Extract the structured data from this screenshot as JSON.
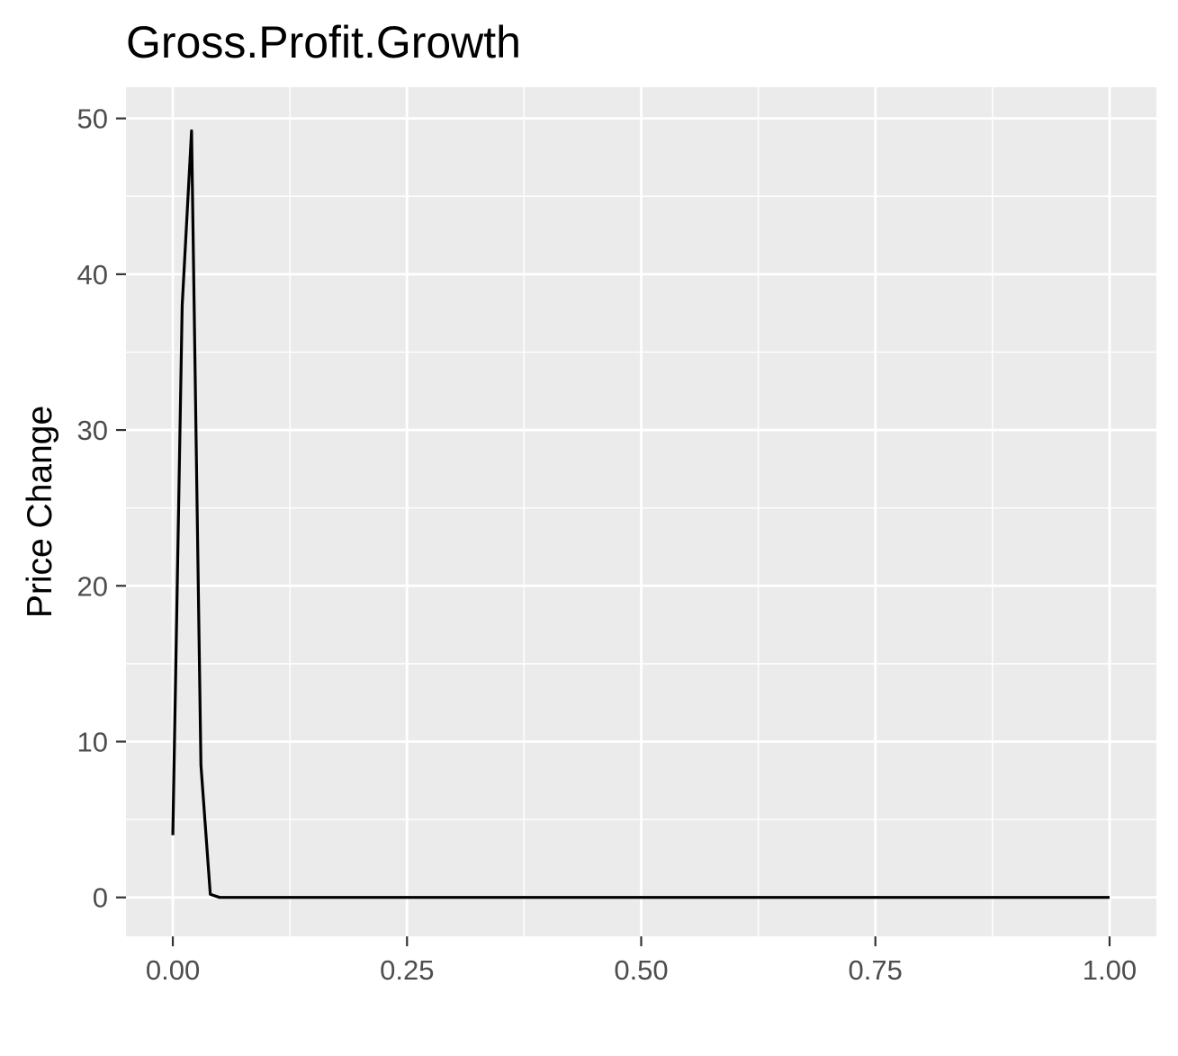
{
  "chart_data": {
    "type": "line",
    "title": "Gross.Profit.Growth",
    "xlabel": "",
    "ylabel": "Price Change",
    "xlim": [
      -0.05,
      1.05
    ],
    "ylim": [
      -2.5,
      52
    ],
    "x_ticks": [
      0.0,
      0.25,
      0.5,
      0.75,
      1.0
    ],
    "x_tick_labels": [
      "0.00",
      "0.25",
      "0.50",
      "0.75",
      "1.00"
    ],
    "y_ticks": [
      0,
      10,
      20,
      30,
      40,
      50
    ],
    "y_tick_labels": [
      "0",
      "10",
      "20",
      "30",
      "40",
      "50"
    ],
    "grid": true,
    "series": [
      {
        "x": [
          0.0,
          0.01,
          0.02,
          0.03,
          0.04,
          0.05,
          0.1,
          0.25,
          0.5,
          0.75,
          1.0
        ],
        "y": [
          4.0,
          38.0,
          49.2,
          8.5,
          0.2,
          0.0,
          0.0,
          0.0,
          0.0,
          0.0,
          0.0
        ]
      }
    ],
    "colors": {
      "panel_background": "#ebebeb",
      "grid_major": "#ffffff",
      "grid_minor": "#ffffff",
      "line": "#000000",
      "tick_mark": "#333333"
    }
  }
}
